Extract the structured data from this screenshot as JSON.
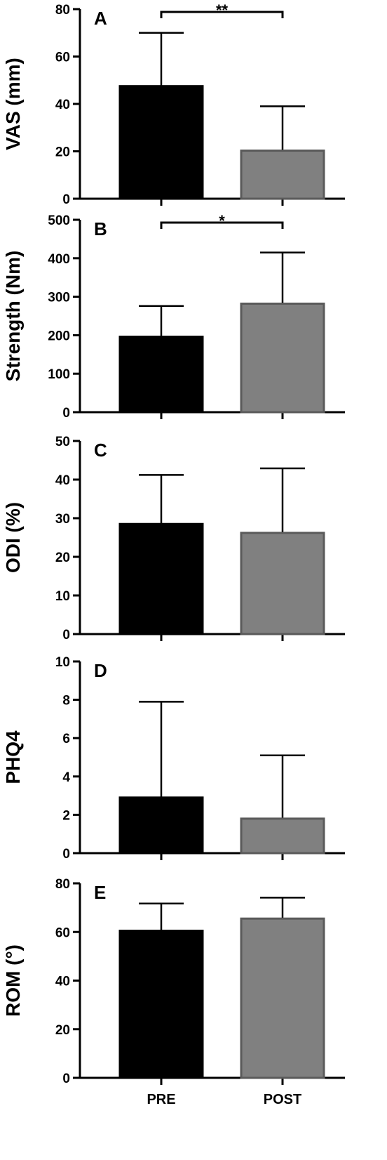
{
  "x_labels": [
    "PRE",
    "POST"
  ],
  "chart_data": [
    {
      "type": "bar",
      "panel": "A",
      "categories": [
        "PRE",
        "POST"
      ],
      "values": [
        47.5,
        20.3
      ],
      "error": [
        22.5,
        18.7
      ],
      "ylabel": "VAS (mm)",
      "ylim": [
        0,
        80
      ],
      "yticks": [
        0,
        20,
        40,
        60,
        80
      ],
      "significance": "**",
      "colors": [
        "#000000",
        "#808080"
      ]
    },
    {
      "type": "bar",
      "panel": "B",
      "categories": [
        "PRE",
        "POST"
      ],
      "values": [
        196,
        282
      ],
      "error": [
        80,
        133
      ],
      "ylabel": "Strength (Nm)",
      "ylim": [
        0,
        500
      ],
      "yticks": [
        0,
        100,
        200,
        300,
        400,
        500
      ],
      "significance": "*",
      "colors": [
        "#000000",
        "#808080"
      ]
    },
    {
      "type": "bar",
      "panel": "C",
      "categories": [
        "PRE",
        "POST"
      ],
      "values": [
        28.5,
        26.2
      ],
      "error": [
        12.7,
        16.7
      ],
      "ylabel": "ODI (%)",
      "ylim": [
        0,
        50
      ],
      "yticks": [
        0,
        10,
        20,
        30,
        40,
        50
      ],
      "significance": "",
      "colors": [
        "#000000",
        "#808080"
      ]
    },
    {
      "type": "bar",
      "panel": "D",
      "categories": [
        "PRE",
        "POST"
      ],
      "values": [
        2.9,
        1.8
      ],
      "error": [
        5.0,
        3.3
      ],
      "ylabel": "PHQ4",
      "ylim": [
        0,
        10
      ],
      "yticks": [
        0,
        2,
        4,
        6,
        8,
        10
      ],
      "significance": "",
      "colors": [
        "#000000",
        "#808080"
      ]
    },
    {
      "type": "bar",
      "panel": "E",
      "categories": [
        "PRE",
        "POST"
      ],
      "values": [
        60.5,
        65.5
      ],
      "error": [
        11.2,
        8.6
      ],
      "ylabel": "ROM (°)",
      "ylim": [
        0,
        80
      ],
      "yticks": [
        0,
        20,
        40,
        60,
        80
      ],
      "significance": "",
      "colors": [
        "#000000",
        "#808080"
      ]
    }
  ]
}
